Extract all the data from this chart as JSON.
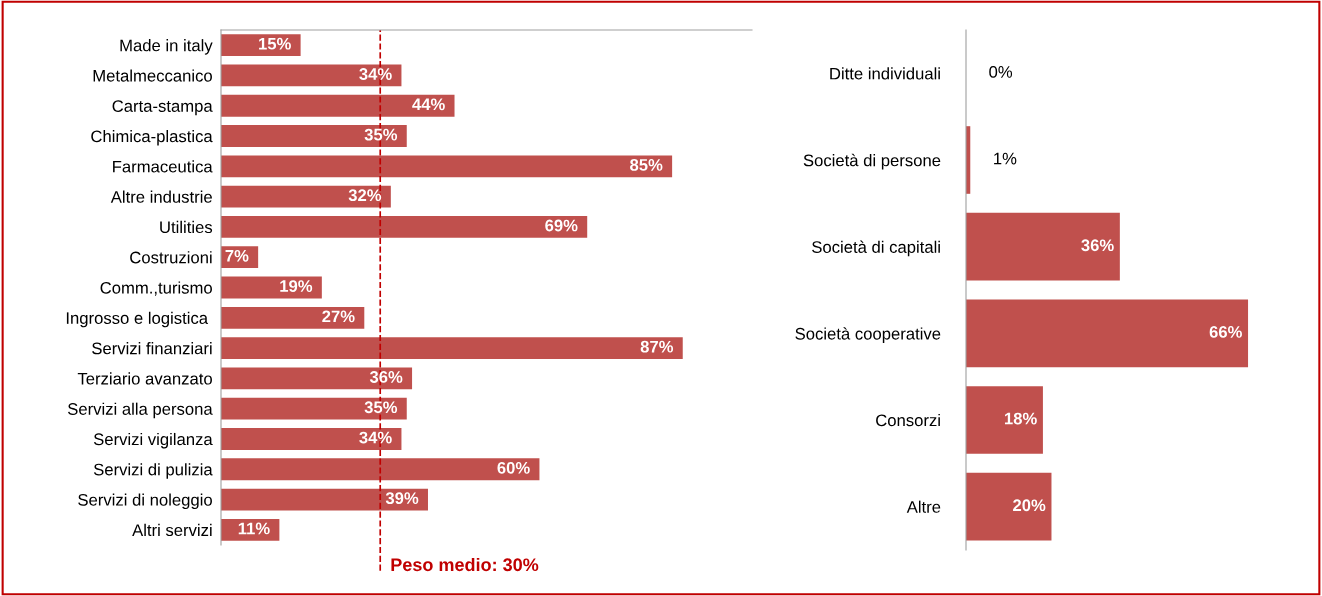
{
  "chart_data": [
    {
      "type": "bar",
      "orientation": "horizontal",
      "color": "#c0504d",
      "data_labels": true,
      "categories": [
        "Made in italy",
        "Metalmeccanico",
        "Carta-stampa",
        "Chimica-plastica",
        "Farmaceutica",
        "Altre industrie",
        "Utilities",
        "Costruzioni",
        "Comm.,turismo",
        "Ingrosso e logistica ",
        "Servizi finanziari",
        "Terziario avanzato",
        "Servizi alla persona",
        "Servizi vigilanza",
        "Servizi di pulizia",
        "Servizi di noleggio",
        "Altri servizi"
      ],
      "values": [
        15,
        34,
        44,
        35,
        85,
        32,
        69,
        7,
        19,
        27,
        87,
        36,
        35,
        34,
        60,
        39,
        11
      ],
      "value_labels": [
        "15%",
        "34%",
        "44%",
        "35%",
        "85%",
        "32%",
        "69%",
        "7%",
        "19%",
        "27%",
        "87%",
        "36%",
        "35%",
        "34%",
        "60%",
        "39%",
        "11%"
      ],
      "ref_lines": [
        {
          "axis": "x",
          "value": 30,
          "label": "Peso medio: 30%",
          "color": "#c00000",
          "line_style": "dashed"
        }
      ]
    },
    {
      "type": "bar",
      "orientation": "horizontal",
      "color": "#c0504d",
      "data_labels": true,
      "categories": [
        "Ditte individuali",
        "Società di persone",
        "Società di capitali",
        "Società cooperative",
        "Consorzi",
        "Altre"
      ],
      "values": [
        0,
        1,
        36,
        66,
        18,
        20
      ],
      "value_labels": [
        "0%",
        "1%",
        "36%",
        "66%",
        "18%",
        "20%"
      ]
    }
  ]
}
